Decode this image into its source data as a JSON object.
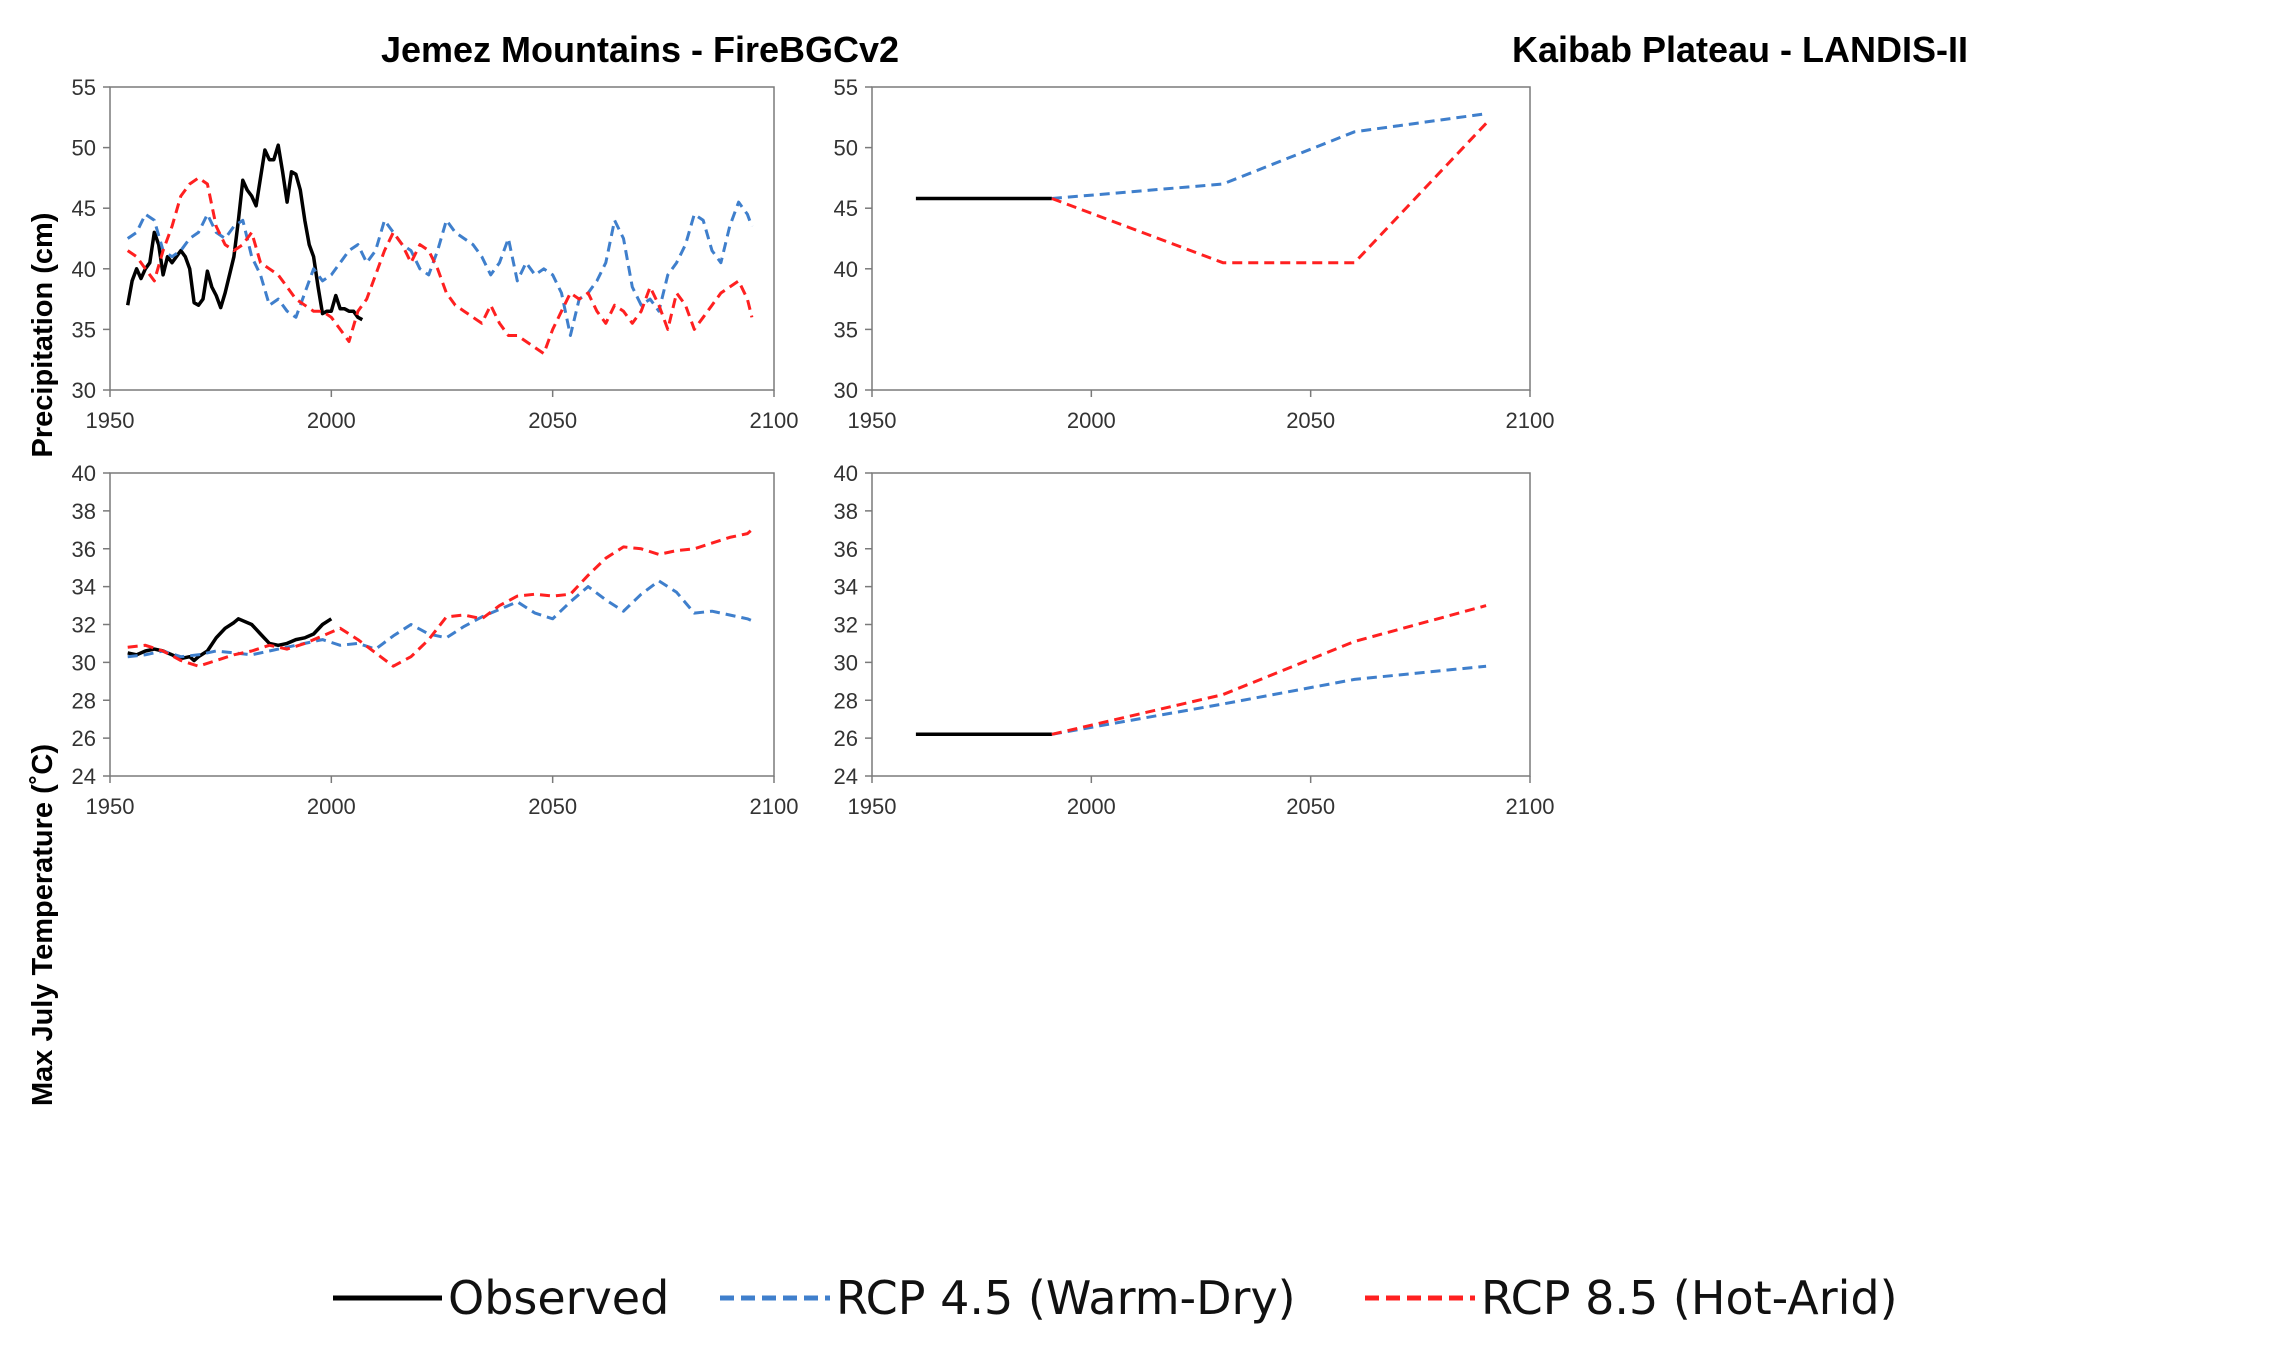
{
  "panel_titles": {
    "left": "Jemez Mountains - FireBGCv2",
    "right": "Kaibab Plateau - LANDIS-II"
  },
  "row_labels": {
    "top": "Precipitation (cm)",
    "bottom": "Max July Temperature (˚C)"
  },
  "colors": {
    "observed": "#000000",
    "rcp45": "#3f7fcc",
    "rcp85": "#ff2020"
  },
  "legend": [
    {
      "key": "observed",
      "label": "Observed",
      "style": "solid"
    },
    {
      "key": "rcp45",
      "label": "RCP 4.5 (Warm-Dry)",
      "style": "dashed"
    },
    {
      "key": "rcp85",
      "label": "RCP 8.5 (Hot-Arid)",
      "style": "dashed"
    }
  ],
  "chart_data": [
    {
      "id": "jemez-precip",
      "type": "line",
      "title": "Jemez Mountains - FireBGCv2",
      "xlabel": "",
      "ylabel": "Precipitation (cm)",
      "xlim": [
        1950,
        2100
      ],
      "ylim": [
        30,
        55
      ],
      "xticks": [
        "1950",
        "2000",
        "2050",
        "2100"
      ],
      "yticks": [
        "30",
        "35",
        "40",
        "45",
        "50",
        "55"
      ],
      "series": [
        {
          "name": "Observed",
          "key": "observed",
          "x": [
            1954,
            1955,
            1956,
            1957,
            1958,
            1959,
            1960,
            1961,
            1962,
            1963,
            1964,
            1965,
            1966,
            1967,
            1968,
            1969,
            1970,
            1971,
            1972,
            1973,
            1974,
            1975,
            1976,
            1977,
            1978,
            1979,
            1980,
            1981,
            1982,
            1983,
            1984,
            1985,
            1986,
            1987,
            1988,
            1989,
            1990,
            1991,
            1992,
            1993,
            1994,
            1995,
            1996,
            1997,
            1998,
            1999,
            2000,
            2001,
            2002,
            2003,
            2004,
            2005,
            2006,
            2007
          ],
          "y": [
            37.0,
            39.0,
            40.0,
            39.2,
            40.0,
            40.5,
            43.0,
            42.0,
            39.5,
            41.0,
            40.5,
            41.0,
            41.5,
            41.0,
            40.0,
            37.2,
            37.0,
            37.5,
            39.8,
            38.5,
            37.8,
            36.8,
            38.0,
            39.5,
            41.0,
            44.0,
            47.3,
            46.5,
            46.0,
            45.2,
            47.5,
            49.8,
            49.0,
            49.0,
            50.2,
            48.0,
            45.5,
            48.0,
            47.8,
            46.5,
            44.0,
            42.0,
            41.0,
            38.5,
            36.3,
            36.5,
            36.5,
            37.8,
            36.7,
            36.7,
            36.5,
            36.5,
            36.0,
            35.8
          ]
        },
        {
          "name": "RCP 4.5 (Warm-Dry)",
          "key": "rcp45",
          "x": [
            1954,
            1956,
            1958,
            1960,
            1962,
            1964,
            1966,
            1968,
            1970,
            1972,
            1974,
            1976,
            1978,
            1980,
            1982,
            1984,
            1986,
            1988,
            1990,
            1992,
            1994,
            1996,
            1998,
            2000,
            2002,
            2004,
            2006,
            2008,
            2010,
            2012,
            2014,
            2016,
            2018,
            2020,
            2022,
            2024,
            2026,
            2028,
            2030,
            2032,
            2034,
            2036,
            2038,
            2040,
            2042,
            2044,
            2046,
            2048,
            2050,
            2052,
            2054,
            2056,
            2058,
            2060,
            2062,
            2064,
            2066,
            2068,
            2070,
            2072,
            2074,
            2076,
            2078,
            2080,
            2082,
            2084,
            2086,
            2088,
            2090,
            2092,
            2094,
            2095
          ],
          "y": [
            42.5,
            43.0,
            44.5,
            44.0,
            41.5,
            41.0,
            41.5,
            42.5,
            43.0,
            44.5,
            43.0,
            42.5,
            43.5,
            44.0,
            41.0,
            39.5,
            37.0,
            37.5,
            36.5,
            36.0,
            38.0,
            40.0,
            39.0,
            39.5,
            40.5,
            41.5,
            42.0,
            40.5,
            41.5,
            44.0,
            43.0,
            42.0,
            41.5,
            40.0,
            39.5,
            41.5,
            44.0,
            43.0,
            42.5,
            42.0,
            41.0,
            39.5,
            40.5,
            42.5,
            39.0,
            40.5,
            39.5,
            40.0,
            39.5,
            38.0,
            34.5,
            37.5,
            38.0,
            39.0,
            40.5,
            44.0,
            42.5,
            38.5,
            37.0,
            37.5,
            36.5,
            39.5,
            40.5,
            42.0,
            44.5,
            44.0,
            41.5,
            40.5,
            43.5,
            45.5,
            44.5,
            43.5
          ]
        },
        {
          "name": "RCP 8.5 (Hot-Arid)",
          "key": "rcp85",
          "x": [
            1954,
            1956,
            1958,
            1960,
            1962,
            1964,
            1966,
            1968,
            1970,
            1972,
            1974,
            1976,
            1978,
            1980,
            1982,
            1984,
            1986,
            1988,
            1990,
            1992,
            1994,
            1996,
            1998,
            2000,
            2002,
            2004,
            2006,
            2008,
            2010,
            2012,
            2014,
            2016,
            2018,
            2020,
            2022,
            2024,
            2026,
            2028,
            2030,
            2032,
            2034,
            2036,
            2038,
            2040,
            2042,
            2044,
            2046,
            2048,
            2050,
            2052,
            2054,
            2056,
            2058,
            2060,
            2062,
            2064,
            2066,
            2068,
            2070,
            2072,
            2074,
            2076,
            2078,
            2080,
            2082,
            2084,
            2086,
            2088,
            2090,
            2092,
            2094,
            2095
          ],
          "y": [
            41.5,
            41.0,
            40.0,
            39.0,
            41.5,
            43.5,
            46.0,
            47.0,
            47.5,
            47.0,
            43.5,
            42.0,
            41.5,
            42.0,
            43.0,
            40.5,
            40.0,
            39.5,
            38.5,
            37.5,
            37.0,
            36.5,
            36.5,
            36.0,
            35.0,
            34.0,
            36.5,
            37.5,
            39.5,
            41.5,
            43.0,
            42.0,
            40.5,
            42.0,
            41.5,
            40.0,
            38.0,
            37.0,
            36.5,
            36.0,
            35.5,
            37.0,
            35.5,
            34.5,
            34.5,
            34.0,
            33.5,
            33.0,
            35.0,
            36.5,
            38.0,
            37.5,
            38.0,
            36.5,
            35.5,
            37.0,
            36.5,
            35.5,
            36.5,
            38.5,
            37.0,
            35.0,
            38.0,
            37.0,
            35.0,
            36.0,
            37.0,
            38.0,
            38.5,
            39.0,
            37.5,
            36.0
          ]
        }
      ]
    },
    {
      "id": "kaibab-precip",
      "type": "line",
      "title": "Kaibab Plateau - LANDIS-II",
      "xlabel": "",
      "ylabel": "",
      "xlim": [
        1950,
        2100
      ],
      "ylim": [
        30,
        55
      ],
      "xticks": [
        "1950",
        "2000",
        "2050",
        "2100"
      ],
      "yticks": [
        "30",
        "35",
        "40",
        "45",
        "50",
        "55"
      ],
      "series": [
        {
          "name": "Observed",
          "key": "observed",
          "x": [
            1960,
            1991
          ],
          "y": [
            45.8,
            45.8
          ]
        },
        {
          "name": "RCP 4.5 (Warm-Dry)",
          "key": "rcp45",
          "x": [
            1991,
            2030,
            2060,
            2090
          ],
          "y": [
            45.8,
            47.0,
            51.3,
            52.8
          ]
        },
        {
          "name": "RCP 8.5 (Hot-Arid)",
          "key": "rcp85",
          "x": [
            1991,
            2030,
            2060,
            2090
          ],
          "y": [
            45.8,
            40.5,
            40.5,
            52.0
          ]
        }
      ]
    },
    {
      "id": "jemez-temp",
      "type": "line",
      "title": "",
      "xlabel": "",
      "ylabel": "Max July Temperature (˚C)",
      "xlim": [
        1950,
        2100
      ],
      "ylim": [
        24,
        40
      ],
      "xticks": [
        "1950",
        "2000",
        "2050",
        "2100"
      ],
      "yticks": [
        "24",
        "26",
        "28",
        "30",
        "32",
        "34",
        "36",
        "38",
        "40"
      ],
      "series": [
        {
          "name": "Observed",
          "key": "observed",
          "x": [
            1954,
            1956,
            1958,
            1960,
            1962,
            1964,
            1966,
            1968,
            1969,
            1970,
            1972,
            1974,
            1976,
            1978,
            1979,
            1980,
            1982,
            1984,
            1986,
            1988,
            1990,
            1992,
            1994,
            1996,
            1998,
            2000
          ],
          "y": [
            30.5,
            30.4,
            30.6,
            30.7,
            30.6,
            30.4,
            30.2,
            30.3,
            30.1,
            30.3,
            30.6,
            31.3,
            31.8,
            32.1,
            32.3,
            32.2,
            32.0,
            31.5,
            31.0,
            30.9,
            31.0,
            31.2,
            31.3,
            31.5,
            32.0,
            32.3
          ]
        },
        {
          "name": "RCP 4.5 (Warm-Dry)",
          "key": "rcp45",
          "x": [
            1954,
            1958,
            1962,
            1966,
            1970,
            1974,
            1978,
            1982,
            1986,
            1990,
            1994,
            1998,
            2002,
            2006,
            2010,
            2014,
            2018,
            2022,
            2026,
            2030,
            2034,
            2038,
            2042,
            2046,
            2050,
            2054,
            2058,
            2062,
            2066,
            2070,
            2074,
            2078,
            2082,
            2086,
            2090,
            2094,
            2095
          ],
          "y": [
            30.3,
            30.4,
            30.6,
            30.3,
            30.4,
            30.6,
            30.5,
            30.4,
            30.6,
            30.8,
            31.0,
            31.2,
            30.9,
            31.0,
            30.7,
            31.4,
            32.0,
            31.5,
            31.3,
            31.9,
            32.4,
            32.8,
            33.2,
            32.6,
            32.3,
            33.2,
            34.0,
            33.3,
            32.7,
            33.6,
            34.3,
            33.7,
            32.6,
            32.7,
            32.5,
            32.3,
            32.2
          ]
        },
        {
          "name": "RCP 8.5 (Hot-Arid)",
          "key": "rcp85",
          "x": [
            1954,
            1958,
            1962,
            1966,
            1970,
            1974,
            1978,
            1982,
            1986,
            1990,
            1994,
            1998,
            2002,
            2006,
            2010,
            2014,
            2018,
            2022,
            2026,
            2030,
            2034,
            2038,
            2042,
            2046,
            2050,
            2054,
            2058,
            2062,
            2066,
            2070,
            2074,
            2078,
            2082,
            2086,
            2090,
            2094,
            2095
          ],
          "y": [
            30.8,
            30.9,
            30.6,
            30.1,
            29.8,
            30.1,
            30.4,
            30.6,
            30.9,
            30.7,
            31.0,
            31.4,
            31.8,
            31.2,
            30.5,
            29.8,
            30.3,
            31.2,
            32.4,
            32.5,
            32.3,
            33.0,
            33.5,
            33.6,
            33.5,
            33.6,
            34.6,
            35.5,
            36.1,
            36.0,
            35.7,
            35.9,
            36.0,
            36.3,
            36.6,
            36.8,
            37.0
          ]
        }
      ]
    },
    {
      "id": "kaibab-temp",
      "type": "line",
      "title": "",
      "xlabel": "",
      "ylabel": "",
      "xlim": [
        1950,
        2100
      ],
      "ylim": [
        24,
        40
      ],
      "xticks": [
        "1950",
        "2000",
        "2050",
        "2100"
      ],
      "yticks": [
        "24",
        "26",
        "28",
        "30",
        "32",
        "34",
        "36",
        "38",
        "40"
      ],
      "series": [
        {
          "name": "Observed",
          "key": "observed",
          "x": [
            1960,
            1991
          ],
          "y": [
            26.2,
            26.2
          ]
        },
        {
          "name": "RCP 4.5 (Warm-Dry)",
          "key": "rcp45",
          "x": [
            1991,
            2030,
            2060,
            2090
          ],
          "y": [
            26.2,
            27.8,
            29.1,
            29.8
          ]
        },
        {
          "name": "RCP 8.5 (Hot-Arid)",
          "key": "rcp85",
          "x": [
            1991,
            2030,
            2060,
            2090
          ],
          "y": [
            26.2,
            28.3,
            31.1,
            33.0
          ]
        }
      ]
    }
  ]
}
